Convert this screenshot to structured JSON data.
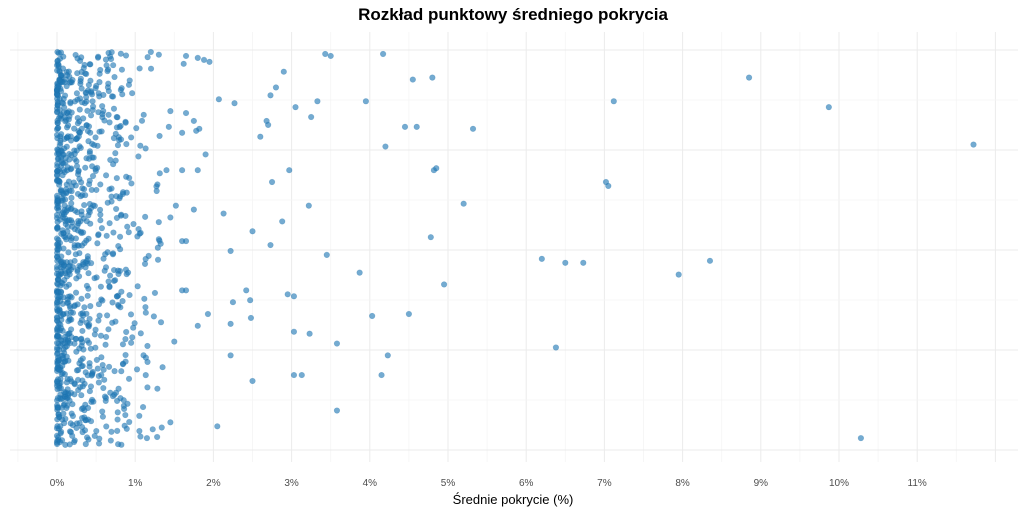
{
  "chart_data": {
    "type": "scatter",
    "title": "Rozkład punktowy średniego pokrycia",
    "xlabel": "Średnie pokrycie (%)",
    "ylabel": "",
    "xlim": [
      -0.5,
      12.0
    ],
    "x_ticks": [
      0,
      1,
      2,
      3,
      4,
      5,
      6,
      7,
      8,
      9,
      10,
      11
    ],
    "x_tick_labels": [
      "0%",
      "1%",
      "2%",
      "3%",
      "4%",
      "5%",
      "6%",
      "7%",
      "8%",
      "9%",
      "10%",
      "11%"
    ],
    "y_jitter_range": [
      0.0,
      1.0
    ],
    "grid": true,
    "legend": "none",
    "point_color": "#1f77b4",
    "dense_cluster": {
      "x_range": [
        0.0,
        0.9
      ],
      "count": 900,
      "note": ""
    },
    "points": [
      [
        1.2,
        0.0
      ],
      [
        1.65,
        0.01
      ],
      [
        1.8,
        0.015
      ],
      [
        1.88,
        0.02
      ],
      [
        1.95,
        0.025
      ],
      [
        1.62,
        0.03
      ],
      [
        3.43,
        0.005
      ],
      [
        3.5,
        0.01
      ],
      [
        4.17,
        0.005
      ],
      [
        2.9,
        0.05
      ],
      [
        4.55,
        0.07
      ],
      [
        4.8,
        0.065
      ],
      [
        8.85,
        0.065
      ],
      [
        2.8,
        0.09
      ],
      [
        2.73,
        0.11
      ],
      [
        2.07,
        0.12
      ],
      [
        2.27,
        0.13
      ],
      [
        3.05,
        0.14
      ],
      [
        3.33,
        0.125
      ],
      [
        3.95,
        0.125
      ],
      [
        7.12,
        0.125
      ],
      [
        9.87,
        0.14
      ],
      [
        1.45,
        0.15
      ],
      [
        1.65,
        0.155
      ],
      [
        1.75,
        0.175
      ],
      [
        1.82,
        0.195
      ],
      [
        1.78,
        0.2
      ],
      [
        1.43,
        0.19
      ],
      [
        1.6,
        0.205
      ],
      [
        2.68,
        0.175
      ],
      [
        2.7,
        0.185
      ],
      [
        3.25,
        0.165
      ],
      [
        4.45,
        0.19
      ],
      [
        4.6,
        0.19
      ],
      [
        5.32,
        0.195
      ],
      [
        2.6,
        0.215
      ],
      [
        4.2,
        0.24
      ],
      [
        11.72,
        0.235
      ],
      [
        1.9,
        0.26
      ],
      [
        1.4,
        0.3
      ],
      [
        1.6,
        0.3
      ],
      [
        1.8,
        0.3
      ],
      [
        2.97,
        0.3
      ],
      [
        4.82,
        0.3
      ],
      [
        4.85,
        0.295
      ],
      [
        2.75,
        0.33
      ],
      [
        7.02,
        0.33
      ],
      [
        7.05,
        0.34
      ],
      [
        1.52,
        0.39
      ],
      [
        1.75,
        0.4
      ],
      [
        3.22,
        0.39
      ],
      [
        5.2,
        0.385
      ],
      [
        2.13,
        0.41
      ],
      [
        2.88,
        0.43
      ],
      [
        1.45,
        0.42
      ],
      [
        2.5,
        0.455
      ],
      [
        4.78,
        0.47
      ],
      [
        1.6,
        0.48
      ],
      [
        1.65,
        0.48
      ],
      [
        2.73,
        0.49
      ],
      [
        2.22,
        0.505
      ],
      [
        3.45,
        0.515
      ],
      [
        6.2,
        0.525
      ],
      [
        6.5,
        0.535
      ],
      [
        6.73,
        0.535
      ],
      [
        8.35,
        0.53
      ],
      [
        7.95,
        0.565
      ],
      [
        3.87,
        0.56
      ],
      [
        4.95,
        0.59
      ],
      [
        1.65,
        0.605
      ],
      [
        1.6,
        0.605
      ],
      [
        2.42,
        0.605
      ],
      [
        2.95,
        0.615
      ],
      [
        3.03,
        0.62
      ],
      [
        2.47,
        0.63
      ],
      [
        2.25,
        0.635
      ],
      [
        1.93,
        0.665
      ],
      [
        2.48,
        0.675
      ],
      [
        4.03,
        0.67
      ],
      [
        4.5,
        0.665
      ],
      [
        2.22,
        0.69
      ],
      [
        1.8,
        0.695
      ],
      [
        3.03,
        0.71
      ],
      [
        3.23,
        0.715
      ],
      [
        1.5,
        0.735
      ],
      [
        3.58,
        0.74
      ],
      [
        6.38,
        0.75
      ],
      [
        2.22,
        0.77
      ],
      [
        4.23,
        0.77
      ],
      [
        1.35,
        0.8
      ],
      [
        3.03,
        0.82
      ],
      [
        3.13,
        0.82
      ],
      [
        4.15,
        0.82
      ],
      [
        2.5,
        0.835
      ],
      [
        3.58,
        0.91
      ],
      [
        1.45,
        0.94
      ],
      [
        2.05,
        0.95
      ],
      [
        1.15,
        0.98
      ],
      [
        10.28,
        0.98
      ]
    ]
  }
}
